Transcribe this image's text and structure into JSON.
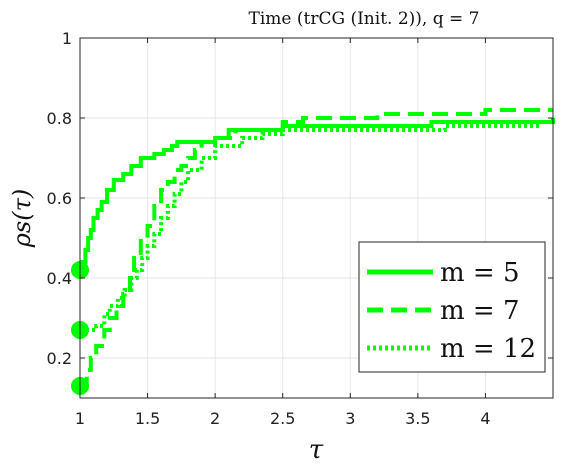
{
  "chart_data": {
    "type": "line",
    "title": "Time (trCG (Init. 2)), q = 7",
    "xlabel": "τ",
    "ylabel": "ρs(τ)",
    "xlim": [
      1,
      4.5
    ],
    "ylim": [
      0.1,
      1.0
    ],
    "xticks": [
      1,
      1.5,
      2,
      2.5,
      3,
      3.5,
      4
    ],
    "yticks": [
      0.2,
      0.4,
      0.6,
      0.8,
      1
    ],
    "xtick_labels": [
      "1",
      "1.5",
      "2",
      "2.5",
      "3",
      "3.5",
      "4"
    ],
    "ytick_labels": [
      "0.2",
      "0.4",
      "0.6",
      "0.8",
      "1"
    ],
    "grid": true,
    "legend_position": "bottom-right",
    "series_color": "#00ff00",
    "series": [
      {
        "name": "m = 5",
        "style": "solid",
        "start_marker": true,
        "points": [
          [
            1.0,
            0.42
          ],
          [
            1.02,
            0.44
          ],
          [
            1.04,
            0.47
          ],
          [
            1.06,
            0.5
          ],
          [
            1.08,
            0.52
          ],
          [
            1.1,
            0.55
          ],
          [
            1.13,
            0.57
          ],
          [
            1.16,
            0.59
          ],
          [
            1.2,
            0.62
          ],
          [
            1.25,
            0.645
          ],
          [
            1.32,
            0.66
          ],
          [
            1.38,
            0.68
          ],
          [
            1.45,
            0.7
          ],
          [
            1.55,
            0.71
          ],
          [
            1.62,
            0.72
          ],
          [
            1.68,
            0.73
          ],
          [
            1.72,
            0.74
          ],
          [
            2.0,
            0.75
          ],
          [
            2.1,
            0.77
          ],
          [
            2.5,
            0.78
          ],
          [
            3.6,
            0.79
          ],
          [
            4.5,
            0.8
          ]
        ]
      },
      {
        "name": "m = 7",
        "style": "dashed",
        "start_marker": true,
        "points": [
          [
            1.0,
            0.13
          ],
          [
            1.05,
            0.17
          ],
          [
            1.08,
            0.2
          ],
          [
            1.12,
            0.23
          ],
          [
            1.18,
            0.27
          ],
          [
            1.22,
            0.3
          ],
          [
            1.27,
            0.33
          ],
          [
            1.32,
            0.36
          ],
          [
            1.37,
            0.4
          ],
          [
            1.4,
            0.45
          ],
          [
            1.45,
            0.5
          ],
          [
            1.5,
            0.53
          ],
          [
            1.55,
            0.58
          ],
          [
            1.6,
            0.62
          ],
          [
            1.65,
            0.64
          ],
          [
            1.7,
            0.67
          ],
          [
            1.75,
            0.68
          ],
          [
            1.8,
            0.7
          ],
          [
            1.85,
            0.72
          ],
          [
            1.9,
            0.74
          ],
          [
            2.0,
            0.75
          ],
          [
            2.15,
            0.77
          ],
          [
            2.5,
            0.79
          ],
          [
            2.65,
            0.8
          ],
          [
            3.0,
            0.8
          ],
          [
            3.2,
            0.81
          ],
          [
            4.0,
            0.82
          ],
          [
            4.5,
            0.82
          ]
        ]
      },
      {
        "name": "m = 12",
        "style": "dotted",
        "start_marker": true,
        "points": [
          [
            1.0,
            0.27
          ],
          [
            1.12,
            0.28
          ],
          [
            1.18,
            0.31
          ],
          [
            1.22,
            0.33
          ],
          [
            1.28,
            0.35
          ],
          [
            1.33,
            0.37
          ],
          [
            1.38,
            0.4
          ],
          [
            1.42,
            0.42
          ],
          [
            1.46,
            0.45
          ],
          [
            1.5,
            0.48
          ],
          [
            1.55,
            0.51
          ],
          [
            1.6,
            0.55
          ],
          [
            1.65,
            0.58
          ],
          [
            1.7,
            0.61
          ],
          [
            1.75,
            0.64
          ],
          [
            1.8,
            0.67
          ],
          [
            1.9,
            0.7
          ],
          [
            2.0,
            0.73
          ],
          [
            2.2,
            0.75
          ],
          [
            2.35,
            0.76
          ],
          [
            2.5,
            0.77
          ],
          [
            3.7,
            0.78
          ],
          [
            4.4,
            0.79
          ]
        ]
      }
    ]
  }
}
